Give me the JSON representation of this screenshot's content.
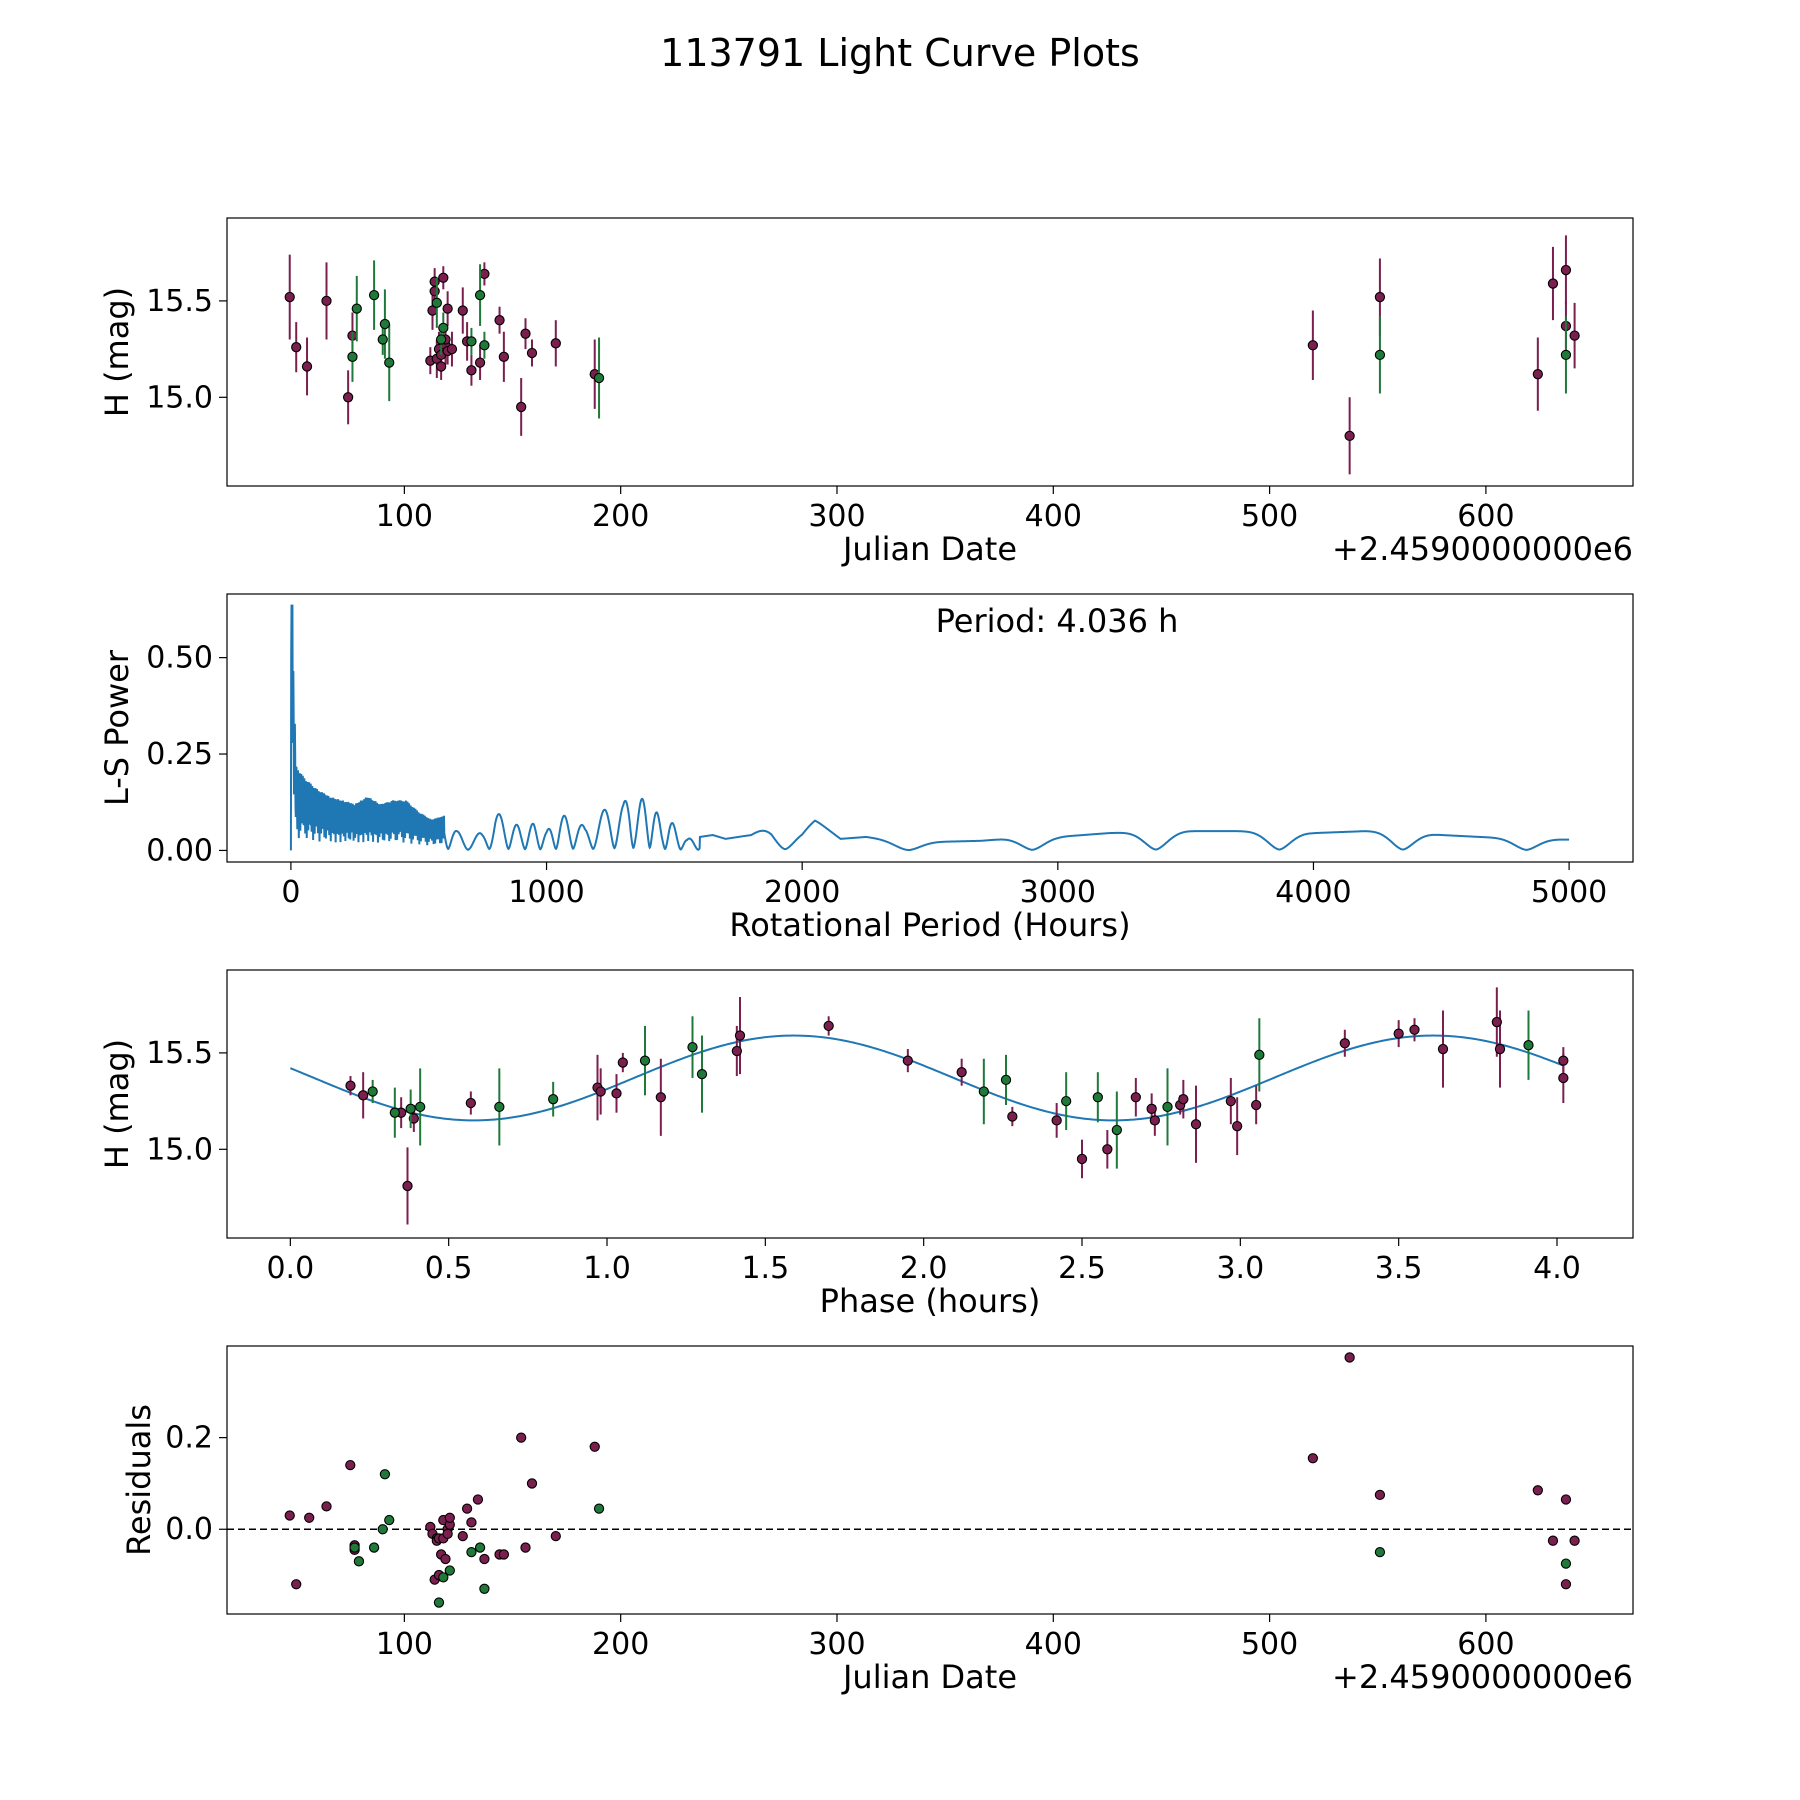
{
  "title": "113791 Light Curve Plots",
  "colors": {
    "maroon": "#7b1f4f",
    "green": "#1f7a3a",
    "line": "#1f77b4",
    "axis": "#000000"
  },
  "chart_data": [
    {
      "type": "scatter",
      "name": "light-curve",
      "ylabel": "H (mag)",
      "xlabel": "Julian Date",
      "offset_label": "+2.4590000000e6",
      "xlim": [
        18,
        668
      ],
      "ylim": [
        14.54,
        15.93
      ],
      "xticks": [
        100,
        200,
        300,
        400,
        500,
        600
      ],
      "yticks": [
        15.0,
        15.5
      ],
      "ytick_labels": [
        "15.0",
        "15.5"
      ],
      "series": [
        {
          "name": "maroon",
          "color": "#7b1f4f",
          "points": [
            [
              47,
              15.52,
              0.22
            ],
            [
              50,
              15.26,
              0.13
            ],
            [
              55,
              15.16,
              0.15
            ],
            [
              64,
              15.5,
              0.2
            ],
            [
              74,
              15.0,
              0.14
            ],
            [
              76,
              15.32,
              0.12
            ],
            [
              112,
              15.19,
              0.07
            ],
            [
              113,
              15.45,
              0.1
            ],
            [
              114,
              15.55,
              0.08
            ],
            [
              114,
              15.6,
              0.07
            ],
            [
              115,
              15.2,
              0.1
            ],
            [
              116,
              15.25,
              0.09
            ],
            [
              117,
              15.22,
              0.08
            ],
            [
              117,
              15.16,
              0.07
            ],
            [
              118,
              15.62,
              0.06
            ],
            [
              119,
              15.27,
              0.1
            ],
            [
              119,
              15.3,
              0.08
            ],
            [
              120,
              15.46,
              0.09
            ],
            [
              120,
              15.24,
              0.07
            ],
            [
              122,
              15.25,
              0.09
            ],
            [
              127,
              15.45,
              0.12
            ],
            [
              129,
              15.29,
              0.1
            ],
            [
              131,
              15.14,
              0.08
            ],
            [
              135,
              15.18,
              0.09
            ],
            [
              137,
              15.64,
              0.06
            ],
            [
              144,
              15.4,
              0.07
            ],
            [
              146,
              15.21,
              0.13
            ],
            [
              154,
              14.95,
              0.15
            ],
            [
              156,
              15.33,
              0.08
            ],
            [
              159,
              15.23,
              0.07
            ],
            [
              170,
              15.28,
              0.12
            ],
            [
              188,
              15.12,
              0.18
            ],
            [
              520,
              15.27,
              0.18
            ],
            [
              537,
              14.8,
              0.2
            ],
            [
              551,
              15.52,
              0.2
            ],
            [
              624,
              15.12,
              0.19
            ],
            [
              631,
              15.59,
              0.19
            ],
            [
              637,
              15.66,
              0.18
            ],
            [
              637,
              15.37,
              0.13
            ],
            [
              641,
              15.32,
              0.17
            ]
          ]
        },
        {
          "name": "green",
          "color": "#1f7a3a",
          "points": [
            [
              76,
              15.21,
              0.13
            ],
            [
              78,
              15.46,
              0.17
            ],
            [
              86,
              15.53,
              0.18
            ],
            [
              90,
              15.3,
              0.08
            ],
            [
              91,
              15.38,
              0.18
            ],
            [
              93,
              15.18,
              0.2
            ],
            [
              115,
              15.49,
              0.13
            ],
            [
              117,
              15.3,
              0.08
            ],
            [
              118,
              15.36,
              0.08
            ],
            [
              131,
              15.29,
              0.07
            ],
            [
              135,
              15.53,
              0.16
            ],
            [
              137,
              15.27,
              0.07
            ],
            [
              190,
              15.1,
              0.21
            ],
            [
              551,
              15.22,
              0.2
            ],
            [
              637,
              15.22,
              0.2
            ]
          ]
        }
      ]
    },
    {
      "type": "line",
      "name": "periodogram",
      "ylabel": "L-S Power",
      "xlabel": "Rotational Period (Hours)",
      "annotation": "Period: 4.036 h",
      "xlim": [
        -250,
        5250
      ],
      "ylim": [
        -0.03,
        0.665
      ],
      "xticks": [
        0,
        1000,
        2000,
        3000,
        4000,
        5000
      ],
      "yticks": [
        0.0,
        0.25,
        0.5
      ],
      "ytick_labels": [
        "0.00",
        "0.25",
        "0.50"
      ],
      "peak": {
        "x": 4.036,
        "y": 0.635
      },
      "envelope": [
        [
          0,
          0.635
        ],
        [
          10,
          0.46
        ],
        [
          20,
          0.22
        ],
        [
          50,
          0.19
        ],
        [
          100,
          0.16
        ],
        [
          150,
          0.14
        ],
        [
          200,
          0.13
        ],
        [
          250,
          0.12
        ],
        [
          300,
          0.14
        ],
        [
          350,
          0.12
        ],
        [
          400,
          0.13
        ],
        [
          450,
          0.13
        ],
        [
          500,
          0.1
        ],
        [
          550,
          0.08
        ],
        [
          600,
          0.09
        ],
        [
          650,
          0.05
        ],
        [
          700,
          0.03
        ],
        [
          750,
          0.05
        ],
        [
          800,
          0.1
        ],
        [
          850,
          0.08
        ],
        [
          900,
          0.06
        ],
        [
          950,
          0.07
        ],
        [
          1000,
          0.05
        ],
        [
          1050,
          0.09
        ],
        [
          1100,
          0.09
        ],
        [
          1150,
          0.06
        ],
        [
          1200,
          0.09
        ],
        [
          1250,
          0.12
        ],
        [
          1300,
          0.12
        ],
        [
          1325,
          0.155
        ],
        [
          1350,
          0.12
        ],
        [
          1400,
          0.15
        ],
        [
          1450,
          0.07
        ],
        [
          1480,
          0.08
        ],
        [
          1550,
          0.03
        ],
        [
          1650,
          0.04
        ],
        [
          1700,
          0.03
        ],
        [
          1800,
          0.04
        ],
        [
          1880,
          0.075
        ],
        [
          2000,
          0.06
        ],
        [
          2050,
          0.08
        ],
        [
          2150,
          0.03
        ],
        [
          2250,
          0.035
        ],
        [
          2400,
          0.02
        ],
        [
          2700,
          0.025
        ],
        [
          2800,
          0.03
        ],
        [
          3000,
          0.035
        ],
        [
          3200,
          0.045
        ],
        [
          3500,
          0.05
        ],
        [
          3700,
          0.05
        ],
        [
          4000,
          0.045
        ],
        [
          4200,
          0.05
        ],
        [
          4300,
          0.05
        ],
        [
          4500,
          0.04
        ],
        [
          4800,
          0.03
        ],
        [
          5000,
          0.028
        ]
      ]
    },
    {
      "type": "scatter",
      "name": "phase-folded",
      "ylabel": "H (mag)",
      "xlabel": "Phase (hours)",
      "xlim": [
        -0.2,
        4.24
      ],
      "ylim": [
        14.54,
        15.93
      ],
      "xticks": [
        0,
        0.5,
        1.0,
        1.5,
        2.0,
        2.5,
        3.0,
        3.5,
        4.0
      ],
      "xtick_labels": [
        "0.0",
        "0.5",
        "1.0",
        "1.5",
        "2.0",
        "2.5",
        "3.0",
        "3.5",
        "4.0"
      ],
      "yticks": [
        15.0,
        15.5
      ],
      "ytick_labels": [
        "15.0",
        "15.5"
      ],
      "model": {
        "mean": 15.37,
        "amplitude": 0.22,
        "period": 2.02,
        "phase_of_max": 1.59
      },
      "series": [
        {
          "name": "maroon",
          "color": "#7b1f4f",
          "points": [
            [
              0.19,
              15.33,
              0.05
            ],
            [
              0.23,
              15.28,
              0.12
            ],
            [
              0.35,
              15.19,
              0.08
            ],
            [
              0.37,
              14.81,
              0.2
            ],
            [
              0.39,
              15.16,
              0.07
            ],
            [
              0.57,
              15.24,
              0.06
            ],
            [
              0.97,
              15.32,
              0.17
            ],
            [
              0.98,
              15.3,
              0.12
            ],
            [
              1.03,
              15.29,
              0.1
            ],
            [
              1.05,
              15.45,
              0.05
            ],
            [
              1.17,
              15.27,
              0.2
            ],
            [
              1.41,
              15.51,
              0.13
            ],
            [
              1.42,
              15.59,
              0.2
            ],
            [
              1.7,
              15.64,
              0.05
            ],
            [
              1.95,
              15.46,
              0.06
            ],
            [
              2.12,
              15.4,
              0.07
            ],
            [
              2.28,
              15.17,
              0.05
            ],
            [
              2.42,
              15.15,
              0.09
            ],
            [
              2.5,
              14.95,
              0.1
            ],
            [
              2.58,
              15.0,
              0.1
            ],
            [
              2.67,
              15.27,
              0.1
            ],
            [
              2.72,
              15.21,
              0.08
            ],
            [
              2.73,
              15.15,
              0.08
            ],
            [
              2.81,
              15.23,
              0.05
            ],
            [
              2.82,
              15.26,
              0.1
            ],
            [
              2.86,
              15.13,
              0.2
            ],
            [
              2.97,
              15.25,
              0.12
            ],
            [
              2.99,
              15.12,
              0.15
            ],
            [
              3.05,
              15.23,
              0.1
            ],
            [
              3.33,
              15.55,
              0.07
            ],
            [
              3.5,
              15.6,
              0.07
            ],
            [
              3.55,
              15.62,
              0.06
            ],
            [
              3.64,
              15.52,
              0.2
            ],
            [
              3.81,
              15.66,
              0.18
            ],
            [
              3.82,
              15.52,
              0.2
            ],
            [
              4.02,
              15.46,
              0.07
            ],
            [
              4.02,
              15.37,
              0.13
            ]
          ]
        },
        {
          "name": "green",
          "color": "#1f7a3a",
          "points": [
            [
              0.26,
              15.3,
              0.06
            ],
            [
              0.33,
              15.19,
              0.13
            ],
            [
              0.38,
              15.21,
              0.1
            ],
            [
              0.41,
              15.22,
              0.2
            ],
            [
              0.66,
              15.22,
              0.2
            ],
            [
              0.83,
              15.26,
              0.09
            ],
            [
              1.12,
              15.46,
              0.18
            ],
            [
              1.27,
              15.53,
              0.16
            ],
            [
              1.3,
              15.39,
              0.2
            ],
            [
              2.19,
              15.3,
              0.17
            ],
            [
              2.26,
              15.36,
              0.13
            ],
            [
              2.45,
              15.25,
              0.15
            ],
            [
              2.55,
              15.27,
              0.13
            ],
            [
              2.61,
              15.1,
              0.2
            ],
            [
              2.77,
              15.22,
              0.2
            ],
            [
              3.06,
              15.49,
              0.19
            ],
            [
              3.91,
              15.54,
              0.18
            ]
          ]
        }
      ]
    },
    {
      "type": "scatter",
      "name": "residuals",
      "ylabel": "Residuals",
      "xlabel": "Julian Date",
      "offset_label": "+2.4590000000e6",
      "xlim": [
        18,
        668
      ],
      "ylim": [
        -0.185,
        0.4
      ],
      "xticks": [
        100,
        200,
        300,
        400,
        500,
        600
      ],
      "yticks": [
        0.0,
        0.2
      ],
      "ytick_labels": [
        "0.0",
        "0.2"
      ],
      "zero_line": 0,
      "series": [
        {
          "name": "maroon",
          "color": "#7b1f4f",
          "points": [
            [
              47,
              0.03
            ],
            [
              50,
              -0.12
            ],
            [
              56,
              0.025
            ],
            [
              64,
              0.05
            ],
            [
              75,
              0.14
            ],
            [
              77,
              -0.035
            ],
            [
              77,
              -0.045
            ],
            [
              112,
              0.005
            ],
            [
              113,
              -0.01
            ],
            [
              114,
              -0.11
            ],
            [
              115,
              -0.02
            ],
            [
              115,
              -0.025
            ],
            [
              116,
              -0.02
            ],
            [
              116,
              -0.1
            ],
            [
              117,
              -0.055
            ],
            [
              118,
              0.02
            ],
            [
              118,
              -0.02
            ],
            [
              119,
              -0.065
            ],
            [
              120,
              0.0
            ],
            [
              120,
              -0.01
            ],
            [
              121,
              0.01
            ],
            [
              121,
              0.025
            ],
            [
              127,
              -0.015
            ],
            [
              129,
              0.045
            ],
            [
              131,
              0.015
            ],
            [
              134,
              0.065
            ],
            [
              137,
              -0.065
            ],
            [
              144,
              -0.055
            ],
            [
              146,
              -0.055
            ],
            [
              154,
              0.2
            ],
            [
              156,
              -0.04
            ],
            [
              159,
              0.1
            ],
            [
              170,
              -0.015
            ],
            [
              188,
              0.18
            ],
            [
              520,
              0.155
            ],
            [
              537,
              0.375
            ],
            [
              551,
              0.075
            ],
            [
              624,
              0.085
            ],
            [
              631,
              -0.025
            ],
            [
              637,
              0.065
            ],
            [
              637,
              -0.12
            ],
            [
              641,
              -0.025
            ]
          ]
        },
        {
          "name": "green",
          "color": "#1f7a3a",
          "points": [
            [
              77,
              -0.04
            ],
            [
              79,
              -0.07
            ],
            [
              86,
              -0.04
            ],
            [
              90,
              0.0
            ],
            [
              91,
              0.12
            ],
            [
              93,
              0.02
            ],
            [
              116,
              -0.16
            ],
            [
              118,
              -0.105
            ],
            [
              121,
              -0.09
            ],
            [
              131,
              -0.05
            ],
            [
              135,
              -0.04
            ],
            [
              137,
              -0.13
            ],
            [
              190,
              0.045
            ],
            [
              551,
              -0.05
            ],
            [
              637,
              -0.075
            ]
          ]
        }
      ]
    }
  ]
}
